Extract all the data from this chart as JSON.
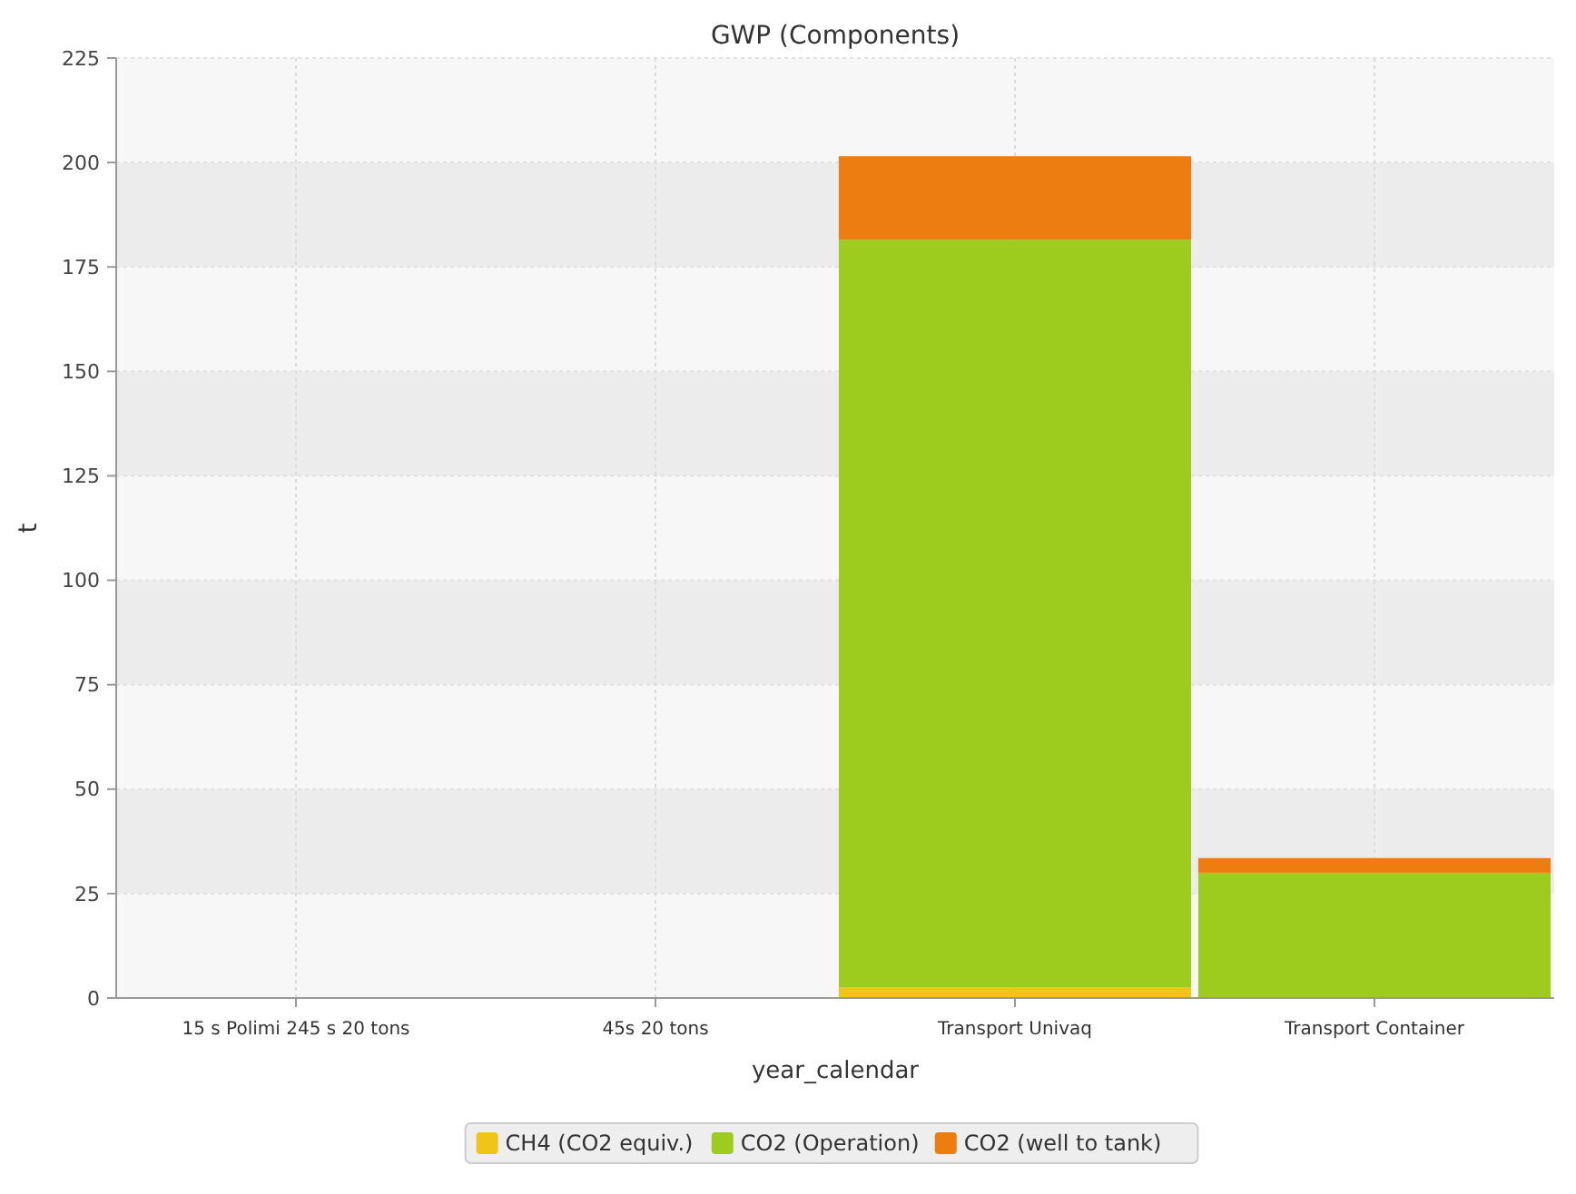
{
  "chart_data": {
    "type": "bar",
    "title": "GWP (Components)",
    "xlabel": "year_calendar",
    "ylabel": "t",
    "categories": [
      "15 s Polimi 245 s 20 tons",
      "45s 20 tons",
      "Transport Univaq",
      "Transport Container"
    ],
    "stacked": true,
    "ylim": [
      0,
      225
    ],
    "yticks": [
      0,
      25,
      50,
      75,
      100,
      125,
      150,
      175,
      200,
      225
    ],
    "grid": true,
    "legend": "bottom",
    "series": [
      {
        "name": "CH4 (CO2 equiv.)",
        "color": "#f0c419",
        "values": [
          0,
          0,
          2.5,
          0
        ]
      },
      {
        "name": "CO2 (Operation)",
        "color": "#9dcc1e",
        "values": [
          0,
          0,
          179,
          30
        ]
      },
      {
        "name": "CO2 (well to tank)",
        "color": "#ee7d11",
        "values": [
          0,
          0,
          20,
          3.5
        ]
      }
    ]
  }
}
